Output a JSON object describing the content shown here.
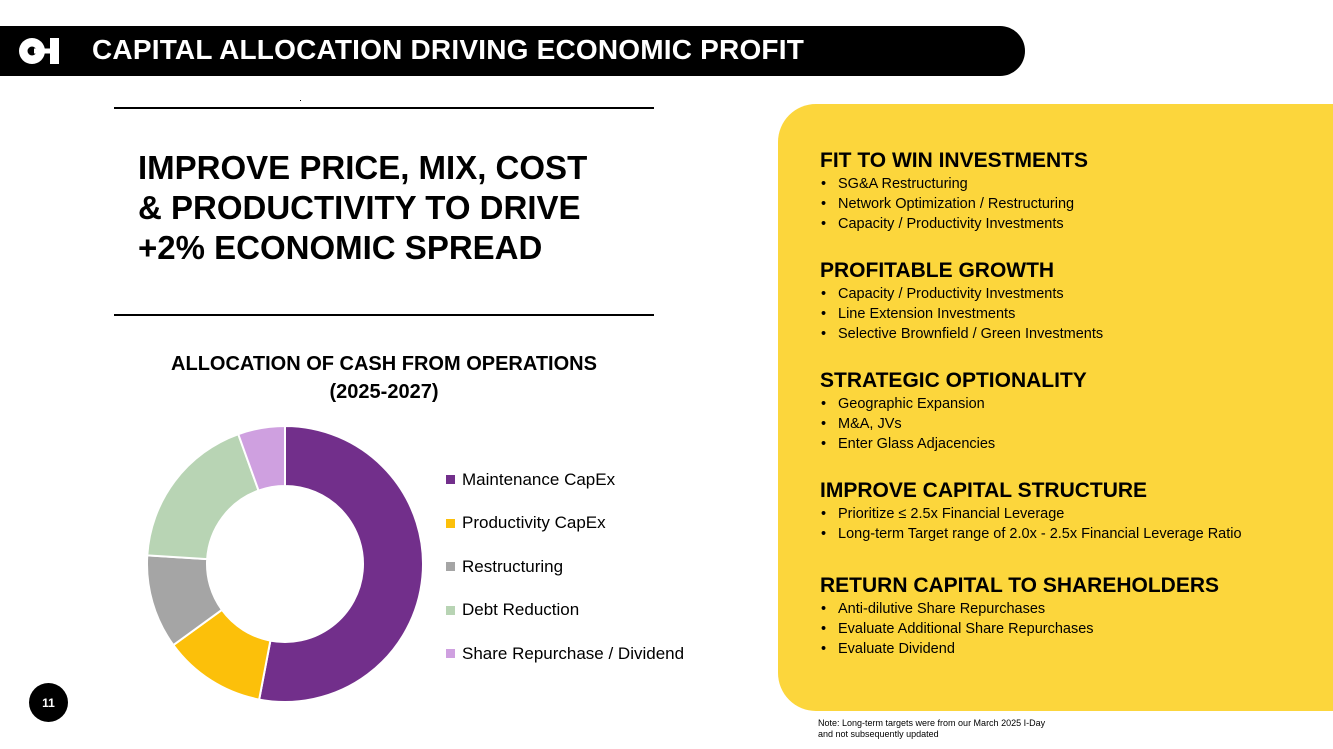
{
  "header": {
    "title": "CAPITAL ALLOCATION DRIVING ECONOMIC PROFIT",
    "logo_icon": "o-i-logo-icon"
  },
  "headline": "IMPROVE PRICE, MIX, COST\n& PRODUCTIVITY TO DRIVE\n+2% ECONOMIC SPREAD",
  "chart_data": {
    "type": "pie",
    "variant": "donut",
    "title": "ALLOCATION OF CASH FROM OPERATIONS\n(2025-2027)",
    "categories": [
      "Maintenance CapEx",
      "Productivity CapEx",
      "Restructuring",
      "Debt Reduction",
      "Share Repurchase / Dividend"
    ],
    "values": [
      53,
      12,
      11,
      18.5,
      5.5
    ],
    "colors": [
      "#722f8b",
      "#fcc00a",
      "#a5a5a5",
      "#b8d4b4",
      "#cfa0e0"
    ],
    "start_angle_deg": 0,
    "direction": "clockwise",
    "legend_position": "right"
  },
  "right_panel": {
    "sections": [
      {
        "title": "FIT TO WIN INVESTMENTS",
        "bullets": [
          "SG&A Restructuring",
          "Network Optimization / Restructuring",
          "Capacity / Productivity Investments"
        ]
      },
      {
        "title": "PROFITABLE GROWTH",
        "bullets": [
          "Capacity / Productivity Investments",
          "Line Extension Investments",
          "Selective Brownfield / Green Investments"
        ]
      },
      {
        "title": "STRATEGIC OPTIONALITY",
        "bullets": [
          "Geographic Expansion",
          "M&A, JVs",
          "Enter Glass Adjacencies"
        ]
      },
      {
        "title": "IMPROVE CAPITAL STRUCTURE",
        "bullets": [
          "Prioritize  ≤ 2.5x Financial Leverage",
          "Long-term Target range of 2.0x - 2.5x Financial Leverage Ratio"
        ]
      },
      {
        "title": "RETURN CAPITAL TO SHAREHOLDERS",
        "bullets": [
          "Anti-dilutive Share Repurchases",
          "Evaluate Additional Share Repurchases",
          "Evaluate Dividend"
        ]
      }
    ]
  },
  "note": "Note: Long-term targets were from our March 2025 I-Day\nand not subsequently updated",
  "page_number": "11",
  "colors": {
    "header_bg": "#000000",
    "panel_bg": "#fcd63c"
  }
}
